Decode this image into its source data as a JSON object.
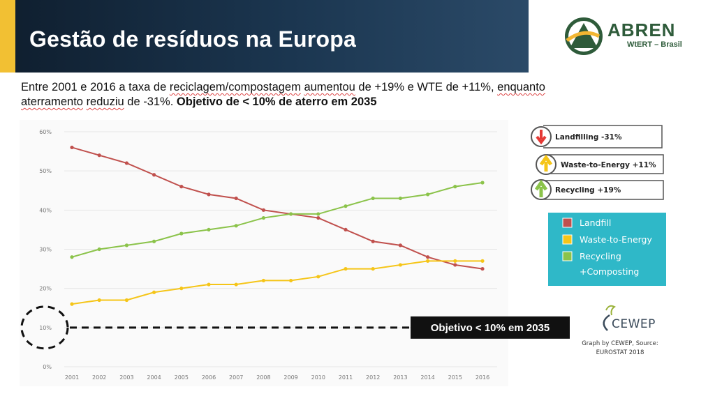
{
  "header": {
    "title": "Gestão de resíduos na Europa"
  },
  "logo": {
    "name": "ABREN",
    "subtitle": "WtERT – Brasil"
  },
  "intro": {
    "p1": "Entre 2001 e 2016 a taxa de ",
    "w1": "reciclagem/compostagem",
    "p2": " ",
    "w2": "aumentou",
    "p3": " de +19% e WTE de +11%, ",
    "w3": "enquanto",
    "p4": " ",
    "w4": "aterramento",
    "p5": " ",
    "w5": "reduziu",
    "p6": " de -31%. ",
    "bold": "Objetivo de < 10% de aterro em 2035"
  },
  "colors": {
    "landfill": "#c0504d",
    "wte": "#f5c518",
    "recycling": "#8bc34a",
    "legend_bg": "#2fb8c8",
    "target_bg": "#111111"
  },
  "chart_data": {
    "type": "line",
    "title": "",
    "xlabel": "",
    "ylabel": "",
    "categories": [
      "2001",
      "2002",
      "2003",
      "2004",
      "2005",
      "2006",
      "2007",
      "2008",
      "2009",
      "2010",
      "2011",
      "2012",
      "2013",
      "2014",
      "2015",
      "2016"
    ],
    "y_ticks": [
      "60%",
      "50%",
      "40%",
      "30%",
      "20%",
      "10%",
      "0%"
    ],
    "ylim": [
      0,
      60
    ],
    "series": [
      {
        "name": "Landfill",
        "color_key": "landfill",
        "values": [
          56,
          54,
          52,
          49,
          46,
          44,
          43,
          40,
          39,
          38,
          35,
          32,
          31,
          28,
          26,
          25
        ]
      },
      {
        "name": "Waste-to-Energy",
        "color_key": "wte",
        "values": [
          16,
          17,
          17,
          19,
          20,
          21,
          21,
          22,
          22,
          23,
          25,
          25,
          26,
          27,
          27,
          27
        ]
      },
      {
        "name": "Recycling +Composting",
        "color_key": "recycling",
        "values": [
          28,
          30,
          31,
          32,
          34,
          35,
          36,
          38,
          39,
          39,
          41,
          43,
          43,
          44,
          46,
          47
        ]
      }
    ],
    "legend": {
      "landfill": "Landfill",
      "wte": "Waste-to-Energy",
      "recycling_1": "Recycling",
      "recycling_2": "+Composting"
    },
    "badges": {
      "landfill": "Landfilling -31%",
      "wte": "Waste-to-Energy +11%",
      "recycling": "Recycling +19%"
    },
    "target": {
      "label": "Objetivo < 10% em 2035",
      "value": 10
    }
  },
  "credit": {
    "org": "CEWEP",
    "line1": "Graph by CEWEP, Source:",
    "line2": "EUROSTAT 2018"
  }
}
